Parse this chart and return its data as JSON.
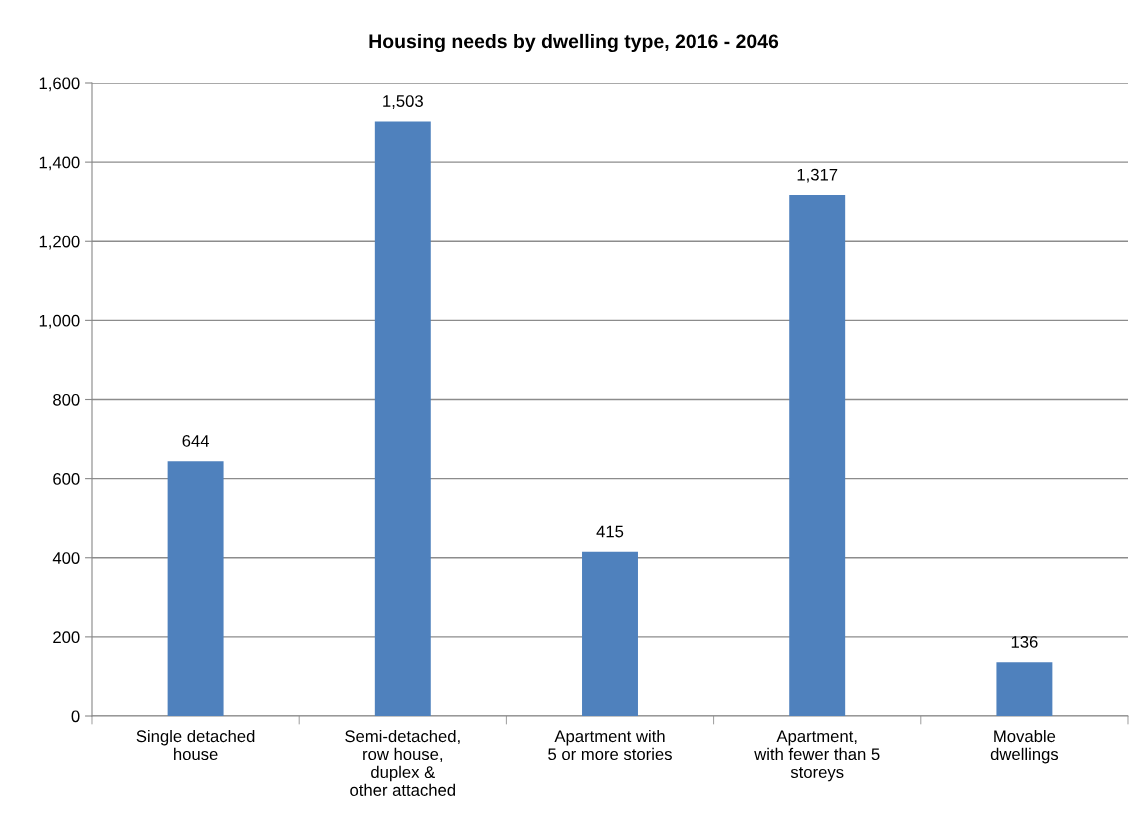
{
  "chart_data": {
    "type": "bar",
    "title": "Housing needs by dwelling type, 2016 - 2046",
    "categories": [
      "Single detached\nhouse",
      "Semi-detached,\nrow house,\nduplex &\nother attached",
      "Apartment with\n5 or more stories",
      "Apartment,\nwith fewer than 5\nstoreys",
      "Movable\ndwellings"
    ],
    "values": [
      644,
      1503,
      415,
      1317,
      136
    ],
    "value_labels": [
      "644",
      "1,503",
      "415",
      "1,317",
      "136"
    ],
    "color": "#4f81bd",
    "ylim": [
      0,
      1600
    ],
    "yticks": [
      {
        "value": 0,
        "label": "0"
      },
      {
        "value": 200,
        "label": "200"
      },
      {
        "value": 400,
        "label": "400"
      },
      {
        "value": 600,
        "label": "600"
      },
      {
        "value": 800,
        "label": "800"
      },
      {
        "value": 1000,
        "label": "1,000"
      },
      {
        "value": 1200,
        "label": "1,200"
      },
      {
        "value": 1400,
        "label": "1,400"
      },
      {
        "value": 1600,
        "label": "1,600"
      }
    ],
    "grid": "y",
    "legend": false
  }
}
